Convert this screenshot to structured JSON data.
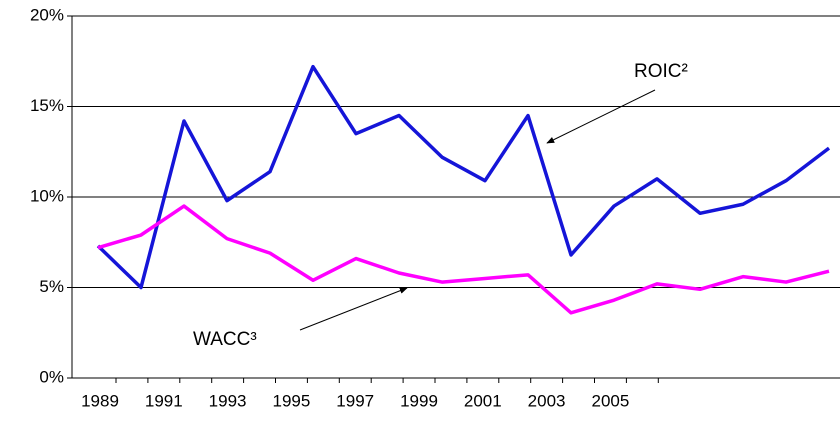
{
  "chart_data": {
    "type": "line",
    "categories": [
      "1989",
      null,
      "1991",
      null,
      "1993",
      null,
      "1995",
      null,
      "1997",
      null,
      "1999",
      null,
      "2001",
      null,
      "2003",
      null,
      "2005",
      null
    ],
    "series": [
      {
        "name": "ROIC²",
        "color": "#1515d8",
        "values": [
          7.3,
          5.0,
          14.2,
          9.8,
          11.4,
          17.2,
          13.5,
          14.5,
          12.2,
          10.9,
          14.5,
          6.8,
          9.5,
          11.0,
          9.1,
          9.6,
          10.9,
          12.7
        ]
      },
      {
        "name": "WACC³",
        "color": "#ff00ff",
        "values": [
          7.2,
          7.9,
          9.5,
          7.7,
          6.9,
          5.4,
          6.6,
          5.8,
          5.3,
          5.5,
          5.7,
          3.6,
          4.3,
          5.2,
          4.9,
          5.6,
          5.3,
          5.9
        ]
      }
    ],
    "ylim": [
      0,
      20
    ],
    "yticks": [
      {
        "value": 0,
        "label": "0%"
      },
      {
        "value": 5,
        "label": "5%"
      },
      {
        "value": 10,
        "label": "10%"
      },
      {
        "value": 15,
        "label": "15%"
      },
      {
        "value": 20,
        "label": "20%"
      }
    ],
    "grid": true
  }
}
